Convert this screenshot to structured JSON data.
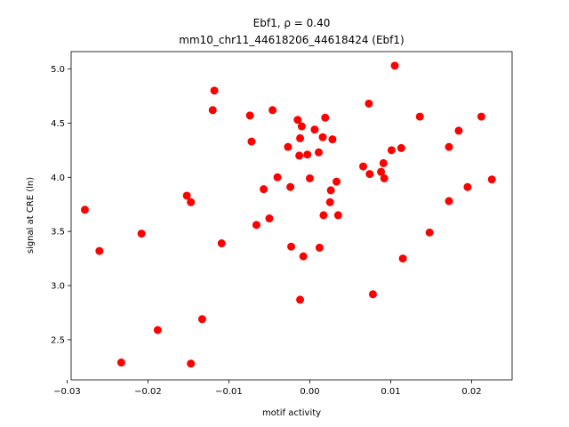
{
  "chart_data": {
    "type": "scatter",
    "title_line1": "Ebf1, ρ = 0.40",
    "title_line2": "mm10_chr11_44618206_44618424 (Ebf1)",
    "xlabel": "motif activity",
    "ylabel": "signal at CRE (ln)",
    "xlim": [
      -0.0295,
      0.025
    ],
    "ylim": [
      2.13,
      5.16
    ],
    "xticks": [
      -0.03,
      -0.02,
      -0.01,
      0.0,
      0.01,
      0.02
    ],
    "xtick_labels": [
      "−0.03",
      "−0.02",
      "−0.01",
      "0.00",
      "0.01",
      "0.02"
    ],
    "yticks": [
      2.5,
      3.0,
      3.5,
      4.0,
      4.5,
      5.0
    ],
    "ytick_labels": [
      "2.5",
      "3.0",
      "3.5",
      "4.0",
      "4.5",
      "5.0"
    ],
    "grid": false,
    "marker_color": "#ff0000",
    "points": [
      {
        "x": -0.0278,
        "y": 3.7
      },
      {
        "x": -0.026,
        "y": 3.32
      },
      {
        "x": -0.0233,
        "y": 2.29
      },
      {
        "x": -0.0208,
        "y": 3.48
      },
      {
        "x": -0.0188,
        "y": 2.59
      },
      {
        "x": -0.0152,
        "y": 3.83
      },
      {
        "x": -0.0147,
        "y": 3.77
      },
      {
        "x": -0.0147,
        "y": 2.28
      },
      {
        "x": -0.0133,
        "y": 2.69
      },
      {
        "x": -0.012,
        "y": 4.62
      },
      {
        "x": -0.0118,
        "y": 4.8
      },
      {
        "x": -0.0109,
        "y": 3.39
      },
      {
        "x": -0.0074,
        "y": 4.57
      },
      {
        "x": -0.0072,
        "y": 4.33
      },
      {
        "x": -0.0066,
        "y": 3.56
      },
      {
        "x": -0.0057,
        "y": 3.89
      },
      {
        "x": -0.005,
        "y": 3.62
      },
      {
        "x": -0.0046,
        "y": 4.62
      },
      {
        "x": -0.004,
        "y": 4.0
      },
      {
        "x": -0.0027,
        "y": 4.28
      },
      {
        "x": -0.0024,
        "y": 3.91
      },
      {
        "x": -0.0023,
        "y": 3.36
      },
      {
        "x": -0.0015,
        "y": 4.53
      },
      {
        "x": -0.0013,
        "y": 4.2
      },
      {
        "x": -0.0012,
        "y": 4.36
      },
      {
        "x": -0.0012,
        "y": 2.87
      },
      {
        "x": -0.001,
        "y": 4.47
      },
      {
        "x": -0.0008,
        "y": 3.27
      },
      {
        "x": -0.0003,
        "y": 4.21
      },
      {
        "x": 0.0,
        "y": 3.99
      },
      {
        "x": 0.0006,
        "y": 4.44
      },
      {
        "x": 0.0011,
        "y": 4.23
      },
      {
        "x": 0.0012,
        "y": 3.35
      },
      {
        "x": 0.0016,
        "y": 4.37
      },
      {
        "x": 0.0017,
        "y": 3.65
      },
      {
        "x": 0.0019,
        "y": 4.55
      },
      {
        "x": 0.0025,
        "y": 3.77
      },
      {
        "x": 0.0026,
        "y": 3.88
      },
      {
        "x": 0.0028,
        "y": 4.35
      },
      {
        "x": 0.0033,
        "y": 3.96
      },
      {
        "x": 0.0035,
        "y": 3.65
      },
      {
        "x": 0.0066,
        "y": 4.1
      },
      {
        "x": 0.0073,
        "y": 4.68
      },
      {
        "x": 0.0074,
        "y": 4.03
      },
      {
        "x": 0.0078,
        "y": 2.92
      },
      {
        "x": 0.0088,
        "y": 4.05
      },
      {
        "x": 0.0091,
        "y": 4.13
      },
      {
        "x": 0.0092,
        "y": 3.99
      },
      {
        "x": 0.0101,
        "y": 4.25
      },
      {
        "x": 0.0105,
        "y": 5.03
      },
      {
        "x": 0.0113,
        "y": 4.27
      },
      {
        "x": 0.0115,
        "y": 3.25
      },
      {
        "x": 0.0136,
        "y": 4.56
      },
      {
        "x": 0.0148,
        "y": 3.49
      },
      {
        "x": 0.0172,
        "y": 4.28
      },
      {
        "x": 0.0172,
        "y": 3.78
      },
      {
        "x": 0.0184,
        "y": 4.43
      },
      {
        "x": 0.0195,
        "y": 3.91
      },
      {
        "x": 0.0212,
        "y": 4.56
      },
      {
        "x": 0.0225,
        "y": 3.98
      }
    ]
  }
}
